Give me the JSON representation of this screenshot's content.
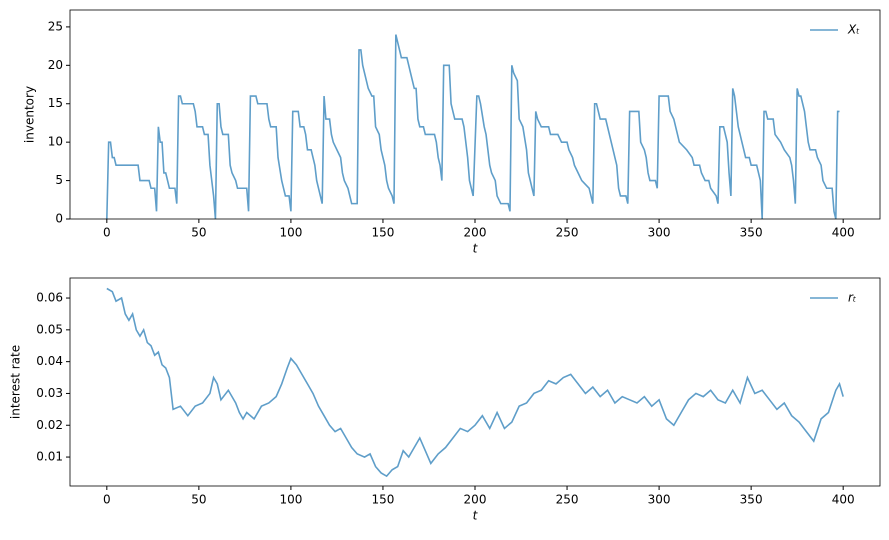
{
  "chart_data": [
    {
      "type": "line",
      "xlabel": "t",
      "ylabel": "inventory",
      "legend": "upper right",
      "xlim": [
        -20,
        420
      ],
      "ylim": [
        0,
        27.2
      ],
      "xticks": [
        0,
        50,
        100,
        150,
        200,
        250,
        300,
        350,
        400
      ],
      "yticks": [
        0,
        5,
        10,
        15,
        20,
        25
      ],
      "x": [
        0,
        1,
        2,
        3,
        4,
        5,
        17,
        18,
        23,
        24,
        26,
        27,
        28,
        29,
        30,
        31,
        32,
        33,
        34,
        37,
        38,
        39,
        40,
        41,
        47,
        48,
        49,
        52,
        53,
        55,
        56,
        57,
        58,
        59,
        60,
        61,
        62,
        63,
        66,
        67,
        68,
        70,
        71,
        76,
        77,
        78,
        81,
        82,
        87,
        88,
        89,
        92,
        93,
        95,
        96,
        97,
        99,
        100,
        101,
        104,
        105,
        107,
        108,
        109,
        111,
        112,
        113,
        114,
        116,
        117,
        118,
        119,
        121,
        122,
        123,
        125,
        127,
        128,
        129,
        131,
        132,
        133,
        136,
        137,
        138,
        139,
        140,
        142,
        144,
        145,
        146,
        148,
        149,
        151,
        152,
        153,
        155,
        156,
        157,
        158,
        159,
        160,
        163,
        164,
        165,
        167,
        168,
        169,
        170,
        172,
        173,
        178,
        179,
        180,
        181,
        182,
        183,
        186,
        187,
        188,
        189,
        193,
        194,
        195,
        196,
        197,
        198,
        199,
        201,
        202,
        203,
        205,
        206,
        207,
        208,
        209,
        211,
        212,
        214,
        218,
        219,
        220,
        221,
        223,
        224,
        226,
        228,
        229,
        230,
        231,
        232,
        233,
        234,
        236,
        240,
        241,
        245,
        247,
        250,
        251,
        253,
        254,
        256,
        258,
        262,
        263,
        264,
        265,
        266,
        267,
        268,
        271,
        272,
        274,
        275,
        276,
        277,
        278,
        279,
        282,
        283,
        284,
        289,
        290,
        292,
        293,
        294,
        295,
        298,
        299,
        300,
        305,
        306,
        308,
        310,
        311,
        315,
        318,
        319,
        322,
        323,
        325,
        327,
        328,
        331,
        332,
        333,
        335,
        336,
        337,
        338,
        339,
        340,
        341,
        343,
        344,
        345,
        346,
        347,
        349,
        350,
        353,
        355,
        356,
        357,
        358,
        359,
        362,
        363,
        366,
        368,
        371,
        372,
        373,
        374,
        375,
        376,
        377,
        379,
        380,
        381,
        382,
        385,
        386,
        388,
        389,
        391,
        394,
        395,
        396,
        397,
        398
      ],
      "series": [
        {
          "name": "Xₜ",
          "color": "#5f9ec9",
          "values": [
            0,
            10,
            10,
            8,
            8,
            7,
            7,
            5,
            5,
            4,
            4,
            1,
            12,
            10,
            10,
            6,
            6,
            5,
            4,
            4,
            2,
            16,
            16,
            15,
            15,
            14,
            12,
            12,
            11,
            11,
            7,
            5,
            3,
            0,
            15,
            15,
            12,
            11,
            11,
            7,
            6,
            5,
            4,
            4,
            1,
            16,
            16,
            15,
            15,
            13,
            12,
            12,
            8,
            5,
            4,
            3,
            3,
            1,
            14,
            14,
            12,
            12,
            11,
            9,
            9,
            8,
            7,
            5,
            3,
            2,
            16,
            13,
            13,
            11,
            10,
            9,
            8,
            6,
            5,
            4,
            3,
            2,
            2,
            22,
            22,
            20,
            19,
            17,
            16,
            16,
            12,
            11,
            9,
            7,
            5,
            4,
            3,
            2,
            24,
            23,
            22,
            21,
            21,
            20,
            19,
            17,
            17,
            13,
            12,
            12,
            11,
            11,
            10,
            8,
            7,
            5,
            20,
            20,
            15,
            14,
            13,
            13,
            12,
            10,
            8,
            5,
            4,
            3,
            16,
            16,
            15,
            12,
            11,
            9,
            7,
            6,
            5,
            3,
            2,
            2,
            1,
            20,
            19,
            18,
            13,
            12,
            9,
            6,
            5,
            4,
            3,
            14,
            13,
            12,
            12,
            11,
            11,
            10,
            10,
            9,
            8,
            7,
            6,
            5,
            4,
            3,
            2,
            15,
            15,
            14,
            13,
            13,
            12,
            10,
            9,
            8,
            7,
            4,
            3,
            3,
            2,
            14,
            14,
            10,
            9,
            8,
            6,
            5,
            5,
            4,
            16,
            16,
            14,
            13,
            11,
            10,
            9,
            8,
            7,
            7,
            6,
            5,
            5,
            4,
            3,
            2,
            12,
            12,
            11,
            10,
            6,
            3,
            17,
            16,
            12,
            11,
            10,
            9,
            8,
            8,
            7,
            7,
            5,
            0,
            14,
            14,
            13,
            13,
            11,
            10,
            9,
            8,
            7,
            5,
            2,
            17,
            16,
            16,
            14,
            12,
            10,
            9,
            9,
            8,
            7,
            5,
            4,
            4,
            1,
            0,
            14,
            14
          ]
        }
      ]
    },
    {
      "type": "line",
      "xlabel": "t",
      "ylabel": "interest rate",
      "legend": "upper right",
      "xlim": [
        -20,
        420
      ],
      "ylim": [
        0.0009,
        0.0663
      ],
      "xticks": [
        0,
        50,
        100,
        150,
        200,
        250,
        300,
        350,
        400
      ],
      "yticks": [
        0.01,
        0.02,
        0.03,
        0.04,
        0.05,
        0.06
      ],
      "x": [
        0,
        3,
        5,
        8,
        10,
        12,
        14,
        16,
        18,
        20,
        22,
        24,
        26,
        28,
        30,
        32,
        34,
        36,
        40,
        44,
        48,
        52,
        56,
        58,
        60,
        62,
        66,
        68,
        70,
        72,
        74,
        76,
        80,
        84,
        88,
        92,
        95,
        98,
        100,
        103,
        106,
        109,
        112,
        115,
        118,
        121,
        124,
        127,
        130,
        133,
        136,
        140,
        143,
        146,
        149,
        152,
        155,
        158,
        161,
        164,
        167,
        170,
        173,
        176,
        180,
        184,
        188,
        192,
        196,
        200,
        204,
        208,
        212,
        216,
        220,
        224,
        228,
        232,
        236,
        240,
        244,
        248,
        252,
        256,
        260,
        264,
        268,
        272,
        276,
        280,
        284,
        288,
        292,
        296,
        300,
        304,
        308,
        312,
        316,
        320,
        324,
        328,
        332,
        336,
        340,
        344,
        348,
        352,
        356,
        360,
        364,
        368,
        372,
        376,
        380,
        384,
        388,
        392,
        396,
        398,
        400
      ],
      "series": [
        {
          "name": "rₜ",
          "color": "#5f9ec9",
          "values": [
            0.063,
            0.062,
            0.059,
            0.06,
            0.055,
            0.053,
            0.055,
            0.05,
            0.048,
            0.05,
            0.046,
            0.045,
            0.042,
            0.043,
            0.039,
            0.038,
            0.035,
            0.025,
            0.026,
            0.023,
            0.026,
            0.027,
            0.03,
            0.035,
            0.033,
            0.028,
            0.031,
            0.029,
            0.027,
            0.024,
            0.022,
            0.024,
            0.022,
            0.026,
            0.027,
            0.029,
            0.033,
            0.038,
            0.041,
            0.039,
            0.036,
            0.033,
            0.03,
            0.026,
            0.023,
            0.02,
            0.018,
            0.019,
            0.016,
            0.013,
            0.011,
            0.01,
            0.011,
            0.007,
            0.005,
            0.004,
            0.006,
            0.007,
            0.012,
            0.01,
            0.013,
            0.016,
            0.012,
            0.008,
            0.011,
            0.013,
            0.016,
            0.019,
            0.018,
            0.02,
            0.023,
            0.019,
            0.024,
            0.019,
            0.021,
            0.026,
            0.027,
            0.03,
            0.031,
            0.034,
            0.033,
            0.035,
            0.036,
            0.033,
            0.03,
            0.032,
            0.029,
            0.031,
            0.027,
            0.029,
            0.028,
            0.027,
            0.029,
            0.026,
            0.028,
            0.022,
            0.02,
            0.024,
            0.028,
            0.03,
            0.029,
            0.031,
            0.028,
            0.027,
            0.031,
            0.027,
            0.035,
            0.03,
            0.031,
            0.028,
            0.025,
            0.027,
            0.023,
            0.021,
            0.018,
            0.015,
            0.022,
            0.024,
            0.031,
            0.033,
            0.029
          ]
        }
      ]
    }
  ]
}
